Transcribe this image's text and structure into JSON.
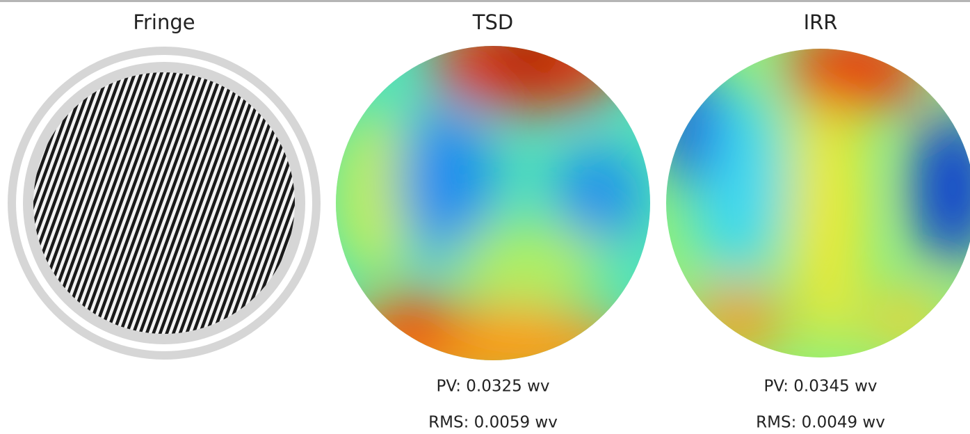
{
  "panels": [
    {
      "title": "Fringe"
    },
    {
      "title": "TSD",
      "pv": "PV: 0.0325 wv",
      "rms": "RMS: 0.0059 wv"
    },
    {
      "title": "IRR",
      "pv": "PV: 0.0345 wv",
      "rms": "RMS: 0.0049 wv"
    }
  ]
}
